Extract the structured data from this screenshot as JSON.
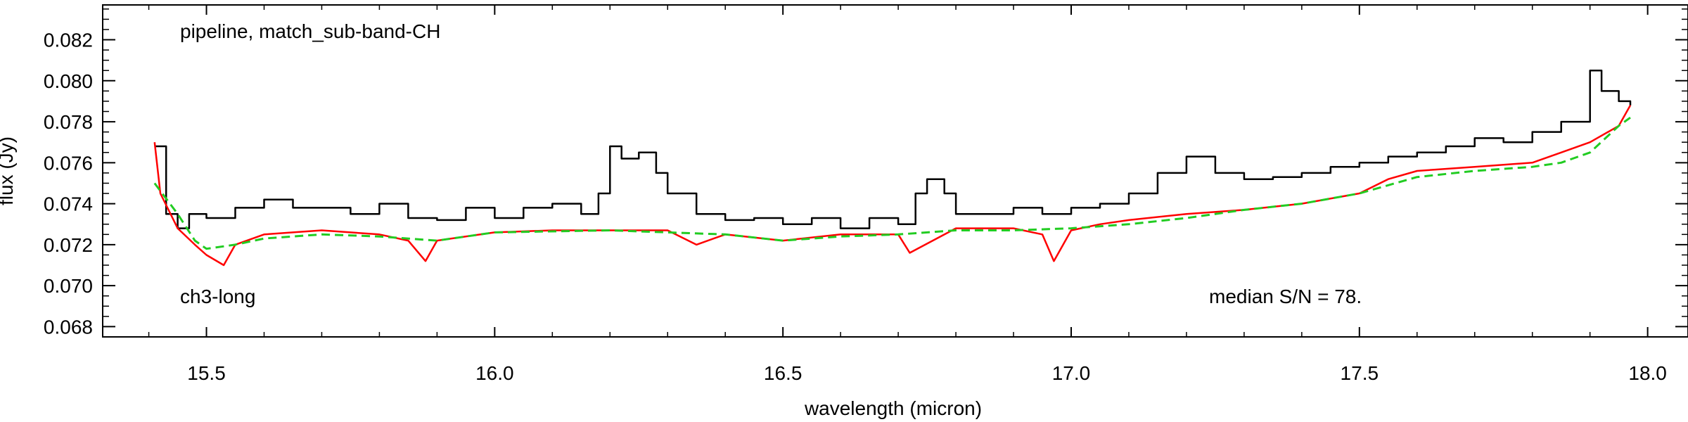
{
  "chart_data": {
    "type": "line",
    "xlabel": "wavelength (micron)",
    "ylabel": "flux (Jy)",
    "xlim": [
      15.32,
      18.07
    ],
    "ylim": [
      0.0675,
      0.0837
    ],
    "x_ticks": [
      15.5,
      16.0,
      16.5,
      17.0,
      17.5,
      18.0
    ],
    "x_tick_labels": [
      "15.5",
      "16.0",
      "16.5",
      "17.0",
      "17.5",
      "18.0"
    ],
    "y_ticks": [
      0.068,
      0.07,
      0.072,
      0.074,
      0.076,
      0.078,
      0.08,
      0.082
    ],
    "y_tick_labels": [
      "0.068",
      "0.070",
      "0.072",
      "0.074",
      "0.076",
      "0.078",
      "0.080",
      "0.082"
    ],
    "annotations": {
      "top_left": "pipeline, match_sub-band-CH",
      "bottom_left": "ch3-long",
      "bottom_right": "median S/N =  78."
    },
    "grid": false,
    "series": [
      {
        "color": "#000000",
        "style": "steps",
        "x": [
          15.41,
          15.43,
          15.45,
          15.47,
          15.5,
          15.55,
          15.6,
          15.65,
          15.7,
          15.75,
          15.8,
          15.85,
          15.9,
          15.95,
          16.0,
          16.05,
          16.1,
          16.15,
          16.18,
          16.2,
          16.22,
          16.25,
          16.28,
          16.3,
          16.35,
          16.4,
          16.45,
          16.5,
          16.55,
          16.6,
          16.65,
          16.7,
          16.73,
          16.75,
          16.78,
          16.8,
          16.85,
          16.9,
          16.95,
          17.0,
          17.05,
          17.1,
          17.15,
          17.2,
          17.25,
          17.3,
          17.35,
          17.4,
          17.45,
          17.5,
          17.55,
          17.6,
          17.65,
          17.7,
          17.75,
          17.8,
          17.85,
          17.9,
          17.92,
          17.95,
          17.97
        ],
        "y": [
          0.0768,
          0.0735,
          0.0728,
          0.0735,
          0.0733,
          0.0738,
          0.0742,
          0.0738,
          0.0738,
          0.0735,
          0.074,
          0.0733,
          0.0732,
          0.0738,
          0.0733,
          0.0738,
          0.074,
          0.0735,
          0.0745,
          0.0768,
          0.0762,
          0.0765,
          0.0755,
          0.0745,
          0.0735,
          0.0732,
          0.0733,
          0.073,
          0.0733,
          0.0728,
          0.0733,
          0.073,
          0.0745,
          0.0752,
          0.0745,
          0.0735,
          0.0735,
          0.0738,
          0.0735,
          0.0738,
          0.074,
          0.0745,
          0.0755,
          0.0763,
          0.0755,
          0.0752,
          0.0753,
          0.0755,
          0.0758,
          0.076,
          0.0763,
          0.0765,
          0.0768,
          0.0772,
          0.077,
          0.0775,
          0.078,
          0.0805,
          0.0795,
          0.079,
          0.0788
        ]
      },
      {
        "color": "#ff0000",
        "style": "line",
        "x": [
          15.41,
          15.42,
          15.45,
          15.48,
          15.5,
          15.53,
          15.55,
          15.6,
          15.65,
          15.7,
          15.75,
          15.8,
          15.85,
          15.88,
          15.9,
          16.0,
          16.1,
          16.15,
          16.2,
          16.3,
          16.35,
          16.4,
          16.5,
          16.6,
          16.7,
          16.72,
          16.8,
          16.9,
          16.95,
          16.97,
          17.0,
          17.05,
          17.1,
          17.2,
          17.3,
          17.4,
          17.5,
          17.55,
          17.6,
          17.7,
          17.8,
          17.85,
          17.9,
          17.95,
          17.97
        ],
        "y": [
          0.077,
          0.0745,
          0.0728,
          0.072,
          0.0715,
          0.071,
          0.072,
          0.0725,
          0.0726,
          0.0727,
          0.0726,
          0.0725,
          0.0722,
          0.0712,
          0.0722,
          0.0726,
          0.0727,
          0.0727,
          0.0727,
          0.0727,
          0.072,
          0.0725,
          0.0722,
          0.0725,
          0.0725,
          0.0716,
          0.0728,
          0.0728,
          0.0725,
          0.0712,
          0.0727,
          0.073,
          0.0732,
          0.0735,
          0.0737,
          0.074,
          0.0745,
          0.0752,
          0.0756,
          0.0758,
          0.076,
          0.0765,
          0.077,
          0.0778,
          0.0788
        ]
      },
      {
        "color": "#22cc22",
        "style": "dashed",
        "x": [
          15.41,
          15.45,
          15.48,
          15.5,
          15.55,
          15.6,
          15.7,
          15.8,
          15.9,
          16.0,
          16.2,
          16.4,
          16.5,
          16.6,
          16.7,
          16.8,
          16.9,
          17.0,
          17.1,
          17.2,
          17.3,
          17.4,
          17.5,
          17.6,
          17.7,
          17.8,
          17.85,
          17.9,
          17.95,
          17.97
        ],
        "y": [
          0.075,
          0.0735,
          0.0722,
          0.0718,
          0.072,
          0.0723,
          0.0725,
          0.0724,
          0.0722,
          0.0726,
          0.0727,
          0.0725,
          0.0722,
          0.0724,
          0.0725,
          0.0727,
          0.0727,
          0.0728,
          0.073,
          0.0733,
          0.0737,
          0.074,
          0.0745,
          0.0753,
          0.0756,
          0.0758,
          0.076,
          0.0765,
          0.0778,
          0.0782
        ]
      }
    ]
  }
}
